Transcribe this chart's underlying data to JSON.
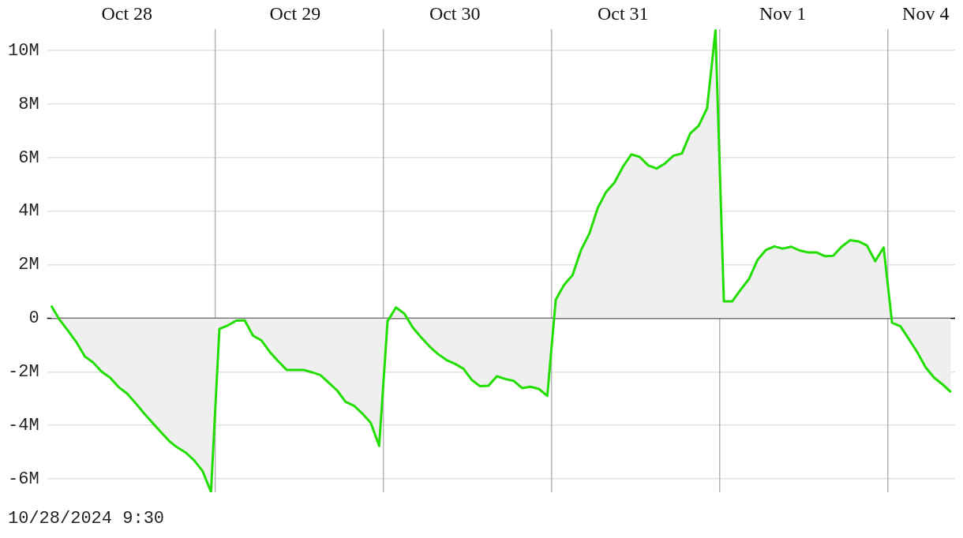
{
  "chart_data": {
    "type": "area",
    "ylim": [
      -6.5,
      10.8
    ],
    "categories": [
      null,
      null,
      null,
      null,
      null,
      null,
      null,
      null,
      null,
      "Oct 28",
      null,
      null,
      null,
      null,
      null,
      null,
      null,
      null,
      null,
      null,
      null,
      null,
      null,
      null,
      null,
      null,
      null,
      null,
      null,
      "Oct 29",
      null,
      null,
      null,
      null,
      null,
      null,
      null,
      null,
      null,
      null,
      null,
      null,
      null,
      null,
      null,
      null,
      null,
      null,
      "Oct 30",
      null,
      null,
      null,
      null,
      null,
      null,
      null,
      null,
      null,
      null,
      null,
      null,
      null,
      null,
      null,
      null,
      null,
      null,
      null,
      "Oct 31",
      null,
      null,
      null,
      null,
      null,
      null,
      null,
      null,
      null,
      null,
      null,
      null,
      null,
      null,
      null,
      null,
      null,
      null,
      "Nov 1",
      null,
      null,
      null,
      null,
      null,
      null,
      null,
      null,
      null,
      null,
      null,
      null,
      null,
      null,
      null,
      null,
      "Nov 4",
      null,
      null,
      null
    ],
    "yticks": [
      {
        "value": -6,
        "label": "-6M"
      },
      {
        "value": -4,
        "label": "-4M"
      },
      {
        "value": -2,
        "label": "-2M"
      },
      0,
      {
        "value": 2,
        "label": "2M"
      },
      {
        "value": 4,
        "label": "4M"
      },
      {
        "value": 6,
        "label": "6M"
      },
      {
        "value": 8,
        "label": "8M"
      },
      {
        "value": 10,
        "label": "10M"
      }
    ],
    "grid": "y",
    "legend": false,
    "marker": "none",
    "ref_lines": [
      {
        "axis": "y",
        "value": 0,
        "color": "#000000"
      }
    ],
    "annotations": [
      "10/28/2024 9:30"
    ],
    "series": [
      {
        "color": "#22dd00",
        "values": [
          0.47,
          -0.06,
          -0.47,
          -0.9,
          -1.43,
          -1.66,
          -2.0,
          -2.22,
          -2.57,
          -2.81,
          -3.16,
          -3.54,
          -3.89,
          -4.24,
          -4.58,
          -4.83,
          -5.02,
          -5.31,
          -5.71,
          -6.49,
          -0.4,
          -0.27,
          -0.09,
          -0.08,
          -0.65,
          -0.83,
          -1.26,
          -1.61,
          -1.93,
          -1.93,
          -1.93,
          -2.02,
          -2.12,
          -2.41,
          -2.7,
          -3.12,
          -3.27,
          -3.56,
          -3.91,
          -4.77,
          -0.11,
          0.4,
          0.17,
          -0.35,
          -0.72,
          -1.06,
          -1.34,
          -1.56,
          -1.7,
          -1.88,
          -2.3,
          -2.54,
          -2.52,
          -2.17,
          -2.27,
          -2.34,
          -2.61,
          -2.56,
          -2.64,
          -2.9,
          0.69,
          1.25,
          1.61,
          2.54,
          3.16,
          4.12,
          4.72,
          5.07,
          5.66,
          6.12,
          6.02,
          5.71,
          5.59,
          5.78,
          6.07,
          6.15,
          6.9,
          7.19,
          7.84,
          10.75,
          0.63,
          0.63,
          1.07,
          1.47,
          2.18,
          2.55,
          2.68,
          2.6,
          2.67,
          2.53,
          2.46,
          2.46,
          2.32,
          2.33,
          2.67,
          2.91,
          2.87,
          2.72,
          2.13,
          2.64,
          -0.17,
          -0.3,
          -0.78,
          -1.27,
          -1.84,
          -2.22,
          -2.47,
          -2.76
        ]
      }
    ]
  }
}
